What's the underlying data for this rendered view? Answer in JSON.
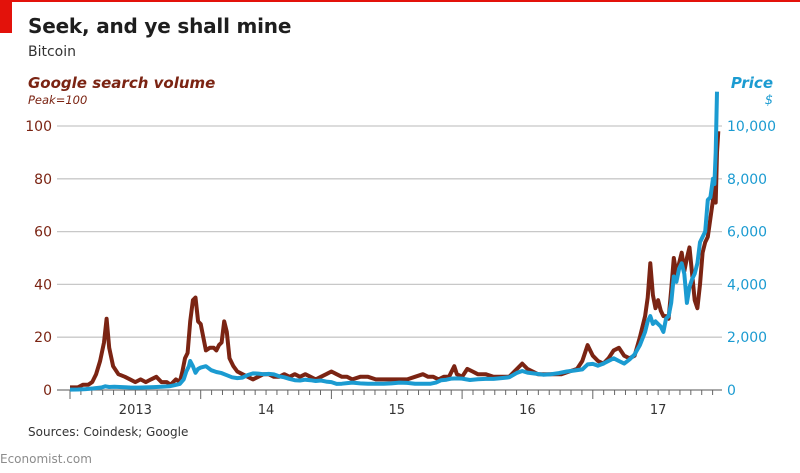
{
  "header": {
    "title": "Seek, and ye shall mine",
    "subtitle": "Bitcoin"
  },
  "footer": {
    "source": "Sources: Coindesk; Google",
    "brand": "Economist.com"
  },
  "colors": {
    "accent_red": "#e3120b",
    "search_series": "#7b2413",
    "price_series": "#1b9bd1",
    "grid": "#c8c8c8"
  },
  "chart_data": {
    "type": "line",
    "title": "Seek, and ye shall mine",
    "subtitle": "Bitcoin",
    "left_axis": {
      "label": "Google search volume",
      "sublabel": "Peak=100",
      "ylim": [
        0,
        100
      ],
      "ticks": [
        0,
        20,
        40,
        60,
        80,
        100
      ],
      "tick_labels": [
        "0",
        "20",
        "40",
        "60",
        "80",
        "100"
      ]
    },
    "right_axis": {
      "label": "Price",
      "sublabel": "$",
      "ylim": [
        0,
        10000
      ],
      "ticks": [
        0,
        2000,
        4000,
        6000,
        8000,
        10000
      ],
      "tick_labels": [
        "0",
        "2,000",
        "4,000",
        "6,000",
        "8,000",
        "10,000"
      ]
    },
    "x_axis": {
      "xlim": [
        2013.0,
        2018.0
      ],
      "year_starts": [
        2013,
        2014,
        2015,
        2016,
        2017
      ],
      "tick_labels": [
        "2013",
        "14",
        "15",
        "16",
        "17"
      ]
    },
    "grid": true,
    "legend": "axis-labels",
    "series": [
      {
        "name": "Google search volume",
        "axis": "left",
        "points": [
          [
            2013.0,
            1
          ],
          [
            2013.06,
            1
          ],
          [
            2013.1,
            2
          ],
          [
            2013.14,
            2
          ],
          [
            2013.17,
            3
          ],
          [
            2013.2,
            6
          ],
          [
            2013.23,
            11
          ],
          [
            2013.26,
            18
          ],
          [
            2013.28,
            27
          ],
          [
            2013.3,
            16
          ],
          [
            2013.33,
            9
          ],
          [
            2013.37,
            6
          ],
          [
            2013.42,
            5
          ],
          [
            2013.46,
            4
          ],
          [
            2013.5,
            3
          ],
          [
            2013.54,
            4
          ],
          [
            2013.58,
            3
          ],
          [
            2013.62,
            4
          ],
          [
            2013.66,
            5
          ],
          [
            2013.7,
            3
          ],
          [
            2013.74,
            3
          ],
          [
            2013.77,
            2
          ],
          [
            2013.81,
            4
          ],
          [
            2013.84,
            3
          ],
          [
            2013.86,
            7
          ],
          [
            2013.88,
            12
          ],
          [
            2013.9,
            14
          ],
          [
            2013.92,
            26
          ],
          [
            2013.94,
            34
          ],
          [
            2013.96,
            35
          ],
          [
            2013.98,
            26
          ],
          [
            2014.0,
            25
          ],
          [
            2014.02,
            20
          ],
          [
            2014.04,
            15
          ],
          [
            2014.07,
            16
          ],
          [
            2014.1,
            16
          ],
          [
            2014.12,
            15
          ],
          [
            2014.14,
            17
          ],
          [
            2014.16,
            18
          ],
          [
            2014.18,
            26
          ],
          [
            2014.2,
            22
          ],
          [
            2014.22,
            12
          ],
          [
            2014.25,
            9
          ],
          [
            2014.28,
            7
          ],
          [
            2014.32,
            6
          ],
          [
            2014.36,
            5
          ],
          [
            2014.4,
            4
          ],
          [
            2014.44,
            5
          ],
          [
            2014.48,
            6
          ],
          [
            2014.52,
            6
          ],
          [
            2014.56,
            5
          ],
          [
            2014.6,
            5
          ],
          [
            2014.64,
            6
          ],
          [
            2014.68,
            5
          ],
          [
            2014.72,
            6
          ],
          [
            2014.76,
            5
          ],
          [
            2014.8,
            6
          ],
          [
            2014.84,
            5
          ],
          [
            2014.88,
            4
          ],
          [
            2014.92,
            5
          ],
          [
            2014.96,
            6
          ],
          [
            2015.0,
            7
          ],
          [
            2015.04,
            6
          ],
          [
            2015.08,
            5
          ],
          [
            2015.12,
            5
          ],
          [
            2015.16,
            4
          ],
          [
            2015.22,
            5
          ],
          [
            2015.28,
            5
          ],
          [
            2015.34,
            4
          ],
          [
            2015.4,
            4
          ],
          [
            2015.46,
            4
          ],
          [
            2015.52,
            4
          ],
          [
            2015.58,
            4
          ],
          [
            2015.64,
            5
          ],
          [
            2015.7,
            6
          ],
          [
            2015.74,
            5
          ],
          [
            2015.78,
            5
          ],
          [
            2015.82,
            4
          ],
          [
            2015.86,
            5
          ],
          [
            2015.9,
            5
          ],
          [
            2015.94,
            9
          ],
          [
            2015.96,
            6
          ],
          [
            2016.0,
            5
          ],
          [
            2016.04,
            8
          ],
          [
            2016.08,
            7
          ],
          [
            2016.12,
            6
          ],
          [
            2016.18,
            6
          ],
          [
            2016.24,
            5
          ],
          [
            2016.3,
            5
          ],
          [
            2016.36,
            5
          ],
          [
            2016.42,
            8
          ],
          [
            2016.46,
            10
          ],
          [
            2016.5,
            8
          ],
          [
            2016.54,
            7
          ],
          [
            2016.58,
            6
          ],
          [
            2016.64,
            6
          ],
          [
            2016.7,
            6
          ],
          [
            2016.76,
            6
          ],
          [
            2016.82,
            7
          ],
          [
            2016.88,
            8
          ],
          [
            2016.92,
            11
          ],
          [
            2016.96,
            17
          ],
          [
            2017.0,
            13
          ],
          [
            2017.04,
            11
          ],
          [
            2017.08,
            10
          ],
          [
            2017.12,
            12
          ],
          [
            2017.16,
            15
          ],
          [
            2017.2,
            16
          ],
          [
            2017.24,
            13
          ],
          [
            2017.28,
            12
          ],
          [
            2017.32,
            13
          ],
          [
            2017.36,
            20
          ],
          [
            2017.4,
            28
          ],
          [
            2017.42,
            35
          ],
          [
            2017.44,
            48
          ],
          [
            2017.46,
            36
          ],
          [
            2017.48,
            31
          ],
          [
            2017.5,
            34
          ],
          [
            2017.52,
            30
          ],
          [
            2017.54,
            28
          ],
          [
            2017.56,
            28
          ],
          [
            2017.58,
            27
          ],
          [
            2017.6,
            38
          ],
          [
            2017.62,
            50
          ],
          [
            2017.64,
            44
          ],
          [
            2017.66,
            48
          ],
          [
            2017.68,
            52
          ],
          [
            2017.7,
            45
          ],
          [
            2017.72,
            50
          ],
          [
            2017.74,
            54
          ],
          [
            2017.76,
            44
          ],
          [
            2017.78,
            34
          ],
          [
            2017.8,
            31
          ],
          [
            2017.82,
            40
          ],
          [
            2017.84,
            52
          ],
          [
            2017.86,
            56
          ],
          [
            2017.88,
            58
          ],
          [
            2017.9,
            65
          ],
          [
            2017.92,
            72
          ],
          [
            2017.93,
            78
          ],
          [
            2017.94,
            71
          ],
          [
            2017.95,
            90
          ],
          [
            2017.96,
            98
          ]
        ]
      },
      {
        "name": "Price",
        "axis": "right",
        "points": [
          [
            2013.0,
            14
          ],
          [
            2013.06,
            20
          ],
          [
            2013.12,
            34
          ],
          [
            2013.18,
            60
          ],
          [
            2013.24,
            95
          ],
          [
            2013.27,
            140
          ],
          [
            2013.3,
            115
          ],
          [
            2013.34,
            120
          ],
          [
            2013.4,
            110
          ],
          [
            2013.46,
            95
          ],
          [
            2013.52,
            90
          ],
          [
            2013.58,
            100
          ],
          [
            2013.64,
            110
          ],
          [
            2013.7,
            125
          ],
          [
            2013.76,
            140
          ],
          [
            2013.8,
            180
          ],
          [
            2013.84,
            230
          ],
          [
            2013.87,
            400
          ],
          [
            2013.89,
            700
          ],
          [
            2013.91,
            900
          ],
          [
            2013.92,
            1100
          ],
          [
            2013.94,
            900
          ],
          [
            2013.96,
            650
          ],
          [
            2013.98,
            800
          ],
          [
            2014.0,
            850
          ],
          [
            2014.04,
            900
          ],
          [
            2014.08,
            750
          ],
          [
            2014.12,
            680
          ],
          [
            2014.16,
            640
          ],
          [
            2014.2,
            560
          ],
          [
            2014.24,
            480
          ],
          [
            2014.28,
            450
          ],
          [
            2014.32,
            470
          ],
          [
            2014.36,
            570
          ],
          [
            2014.4,
            630
          ],
          [
            2014.44,
            620
          ],
          [
            2014.48,
            600
          ],
          [
            2014.52,
            610
          ],
          [
            2014.56,
            590
          ],
          [
            2014.6,
            520
          ],
          [
            2014.64,
            480
          ],
          [
            2014.68,
            420
          ],
          [
            2014.72,
            370
          ],
          [
            2014.76,
            360
          ],
          [
            2014.8,
            390
          ],
          [
            2014.84,
            370
          ],
          [
            2014.88,
            340
          ],
          [
            2014.92,
            360
          ],
          [
            2014.96,
            320
          ],
          [
            2015.0,
            300
          ],
          [
            2015.04,
            230
          ],
          [
            2015.08,
            240
          ],
          [
            2015.12,
            260
          ],
          [
            2015.16,
            280
          ],
          [
            2015.22,
            250
          ],
          [
            2015.28,
            240
          ],
          [
            2015.34,
            235
          ],
          [
            2015.4,
            240
          ],
          [
            2015.46,
            250
          ],
          [
            2015.52,
            280
          ],
          [
            2015.58,
            270
          ],
          [
            2015.64,
            240
          ],
          [
            2015.7,
            235
          ],
          [
            2015.76,
            240
          ],
          [
            2015.8,
            280
          ],
          [
            2015.84,
            370
          ],
          [
            2015.88,
            390
          ],
          [
            2015.92,
            430
          ],
          [
            2015.96,
            440
          ],
          [
            2016.0,
            430
          ],
          [
            2016.06,
            380
          ],
          [
            2016.12,
            410
          ],
          [
            2016.18,
            420
          ],
          [
            2016.24,
            420
          ],
          [
            2016.3,
            450
          ],
          [
            2016.36,
            480
          ],
          [
            2016.42,
            650
          ],
          [
            2016.46,
            720
          ],
          [
            2016.5,
            660
          ],
          [
            2016.56,
            620
          ],
          [
            2016.62,
            580
          ],
          [
            2016.68,
            600
          ],
          [
            2016.74,
            640
          ],
          [
            2016.8,
            700
          ],
          [
            2016.86,
            740
          ],
          [
            2016.92,
            780
          ],
          [
            2016.96,
            970
          ],
          [
            2017.0,
            990
          ],
          [
            2017.04,
            920
          ],
          [
            2017.08,
            1000
          ],
          [
            2017.12,
            1100
          ],
          [
            2017.16,
            1200
          ],
          [
            2017.2,
            1100
          ],
          [
            2017.24,
            1000
          ],
          [
            2017.28,
            1150
          ],
          [
            2017.32,
            1350
          ],
          [
            2017.36,
            1700
          ],
          [
            2017.4,
            2200
          ],
          [
            2017.42,
            2600
          ],
          [
            2017.44,
            2800
          ],
          [
            2017.46,
            2500
          ],
          [
            2017.48,
            2600
          ],
          [
            2017.5,
            2500
          ],
          [
            2017.52,
            2400
          ],
          [
            2017.54,
            2200
          ],
          [
            2017.56,
            2700
          ],
          [
            2017.58,
            2800
          ],
          [
            2017.6,
            3300
          ],
          [
            2017.62,
            4300
          ],
          [
            2017.64,
            4100
          ],
          [
            2017.66,
            4600
          ],
          [
            2017.68,
            4800
          ],
          [
            2017.7,
            4400
          ],
          [
            2017.72,
            3300
          ],
          [
            2017.74,
            3900
          ],
          [
            2017.76,
            4200
          ],
          [
            2017.78,
            4400
          ],
          [
            2017.8,
            4800
          ],
          [
            2017.82,
            5600
          ],
          [
            2017.84,
            5800
          ],
          [
            2017.86,
            6000
          ],
          [
            2017.88,
            7200
          ],
          [
            2017.9,
            7300
          ],
          [
            2017.92,
            8000
          ],
          [
            2017.93,
            7800
          ],
          [
            2017.94,
            9000
          ],
          [
            2017.95,
            11300
          ]
        ]
      }
    ]
  }
}
